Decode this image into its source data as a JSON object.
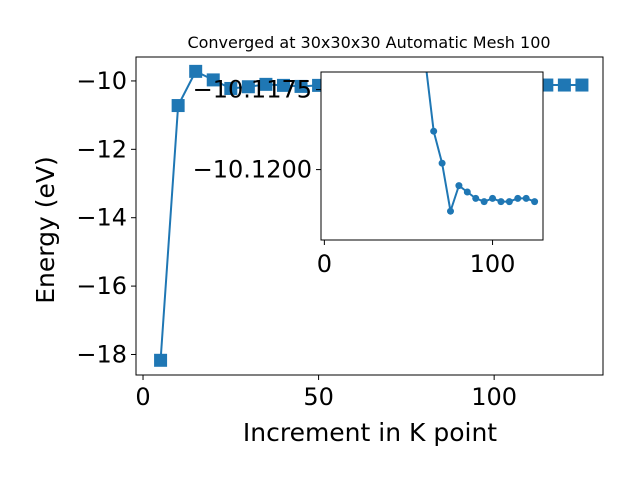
{
  "chart_data": [
    {
      "type": "line",
      "title": "Converged at 30x30x30 Automatic Mesh 100",
      "xlabel": "Increment in K point",
      "ylabel": "Energy (eV)",
      "xlim": [
        -2,
        131
      ],
      "ylim": [
        -18.6,
        -9.3
      ],
      "xticks": [
        0,
        50,
        100
      ],
      "xtick_labels": [
        "0",
        "50",
        "100"
      ],
      "yticks": [
        -18,
        -16,
        -14,
        -12,
        -10
      ],
      "ytick_labels": [
        "−18",
        "−16",
        "−14",
        "−12",
        "−10"
      ],
      "marker": "square",
      "color": "#1f77b4",
      "x": [
        5,
        10,
        15,
        20,
        25,
        30,
        35,
        40,
        45,
        50,
        55,
        60,
        65,
        70,
        75,
        80,
        85,
        90,
        95,
        100,
        105,
        110,
        115,
        120,
        125
      ],
      "y": [
        -18.17,
        -10.72,
        -9.72,
        -9.97,
        -10.22,
        -10.17,
        -10.1,
        -10.13,
        -10.16,
        -10.13,
        -10.12,
        -10.12,
        -10.12,
        -10.12,
        -10.12,
        -10.12,
        -10.12,
        -10.12,
        -10.12,
        -10.12,
        -10.12,
        -10.12,
        -10.12,
        -10.12,
        -10.12
      ]
    },
    {
      "type": "line",
      "title": "",
      "xlim": [
        -2,
        130
      ],
      "ylim": [
        -10.1222,
        -10.11695
      ],
      "xticks": [
        0,
        100
      ],
      "xtick_labels": [
        "0",
        "100"
      ],
      "yticks": [
        -10.12,
        -10.1175
      ],
      "ytick_labels": [
        "−10.1200",
        "−10.1175"
      ],
      "marker": "circle",
      "color": "#1f77b4",
      "x": [
        60,
        65,
        70,
        75,
        80,
        85,
        90,
        95,
        100,
        105,
        110,
        115,
        120,
        125
      ],
      "y": [
        -10.1166,
        -10.1188,
        -10.1198,
        -10.1213,
        -10.1205,
        -10.1207,
        -10.1209,
        -10.121,
        -10.1209,
        -10.121,
        -10.121,
        -10.1209,
        -10.1209,
        -10.121
      ]
    }
  ]
}
